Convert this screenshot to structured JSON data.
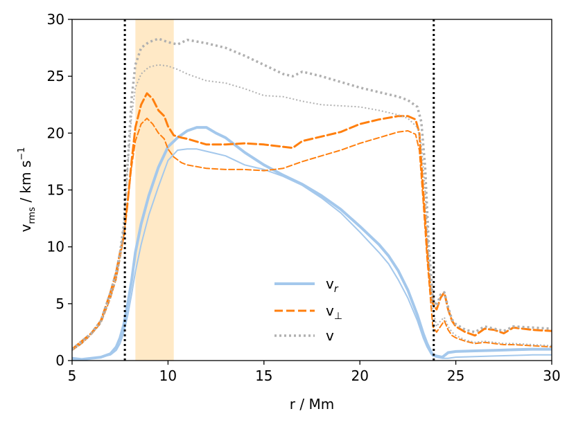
{
  "chart_data": {
    "type": "line",
    "xlabel": "r / Mm",
    "ylabel_main": "v",
    "ylabel_sub": "rms",
    "ylabel_units": " / km s",
    "ylabel_sup": "−1",
    "xlim": [
      5,
      30
    ],
    "ylim": [
      0,
      30
    ],
    "xticks": [
      5,
      10,
      15,
      20,
      25,
      30
    ],
    "yticks": [
      0,
      5,
      10,
      15,
      20,
      25,
      30
    ],
    "vlines": [
      7.75,
      23.85
    ],
    "shaded_span": [
      8.3,
      10.3
    ],
    "colors": {
      "blue": "#a4c8ec",
      "orange": "#ff7f0e",
      "gray": "#b0b0b0",
      "band": "#ffe9c6",
      "vline": "#000000"
    },
    "legend": {
      "position": "center-bottom",
      "entries": [
        {
          "key": "vr",
          "base": "v",
          "sub": "r",
          "style": "solid",
          "color": "blue"
        },
        {
          "key": "vperp",
          "base": "v",
          "sub": "⊥",
          "style": "dashed",
          "color": "orange"
        },
        {
          "key": "v",
          "base": "v",
          "sub": "",
          "style": "dotted",
          "color": "gray"
        }
      ]
    },
    "series": [
      {
        "name": "v_r (thick)",
        "legend_key": "vr",
        "color": "blue",
        "style": "solid",
        "width": 4,
        "x": [
          5,
          5.5,
          6,
          6.5,
          7,
          7.3,
          7.5,
          7.7,
          7.9,
          8.1,
          8.3,
          8.6,
          9,
          9.5,
          10,
          10.5,
          11,
          11.5,
          12,
          12.5,
          13,
          14,
          15,
          16,
          17,
          18,
          19,
          20,
          21,
          21.5,
          22,
          22.5,
          23,
          23.3,
          23.5,
          23.7,
          23.8,
          24,
          24.3,
          24.6,
          25,
          26,
          27,
          28,
          29,
          30
        ],
        "y": [
          0.2,
          0.1,
          0.2,
          0.3,
          0.6,
          1.2,
          2.0,
          3.2,
          5.0,
          7.0,
          9.5,
          12.0,
          14.5,
          17.0,
          18.8,
          19.6,
          20.2,
          20.5,
          20.5,
          20.0,
          19.6,
          18.3,
          17.2,
          16.3,
          15.5,
          14.5,
          13.3,
          11.8,
          10.2,
          9.2,
          7.9,
          6.2,
          4.0,
          2.4,
          1.5,
          0.8,
          0.5,
          0.4,
          0.3,
          0.7,
          0.8,
          0.85,
          0.9,
          0.95,
          1.0,
          1.0
        ]
      },
      {
        "name": "v_r (thin)",
        "legend_key": "vr",
        "color": "blue",
        "style": "solid",
        "width": 2,
        "x": [
          5,
          5.5,
          6,
          6.5,
          7,
          7.3,
          7.5,
          7.7,
          7.9,
          8.1,
          8.3,
          8.6,
          9,
          9.5,
          10,
          10.5,
          11,
          11.5,
          12,
          12.5,
          13,
          14,
          15,
          16,
          17,
          18,
          19,
          20,
          21,
          21.5,
          22,
          22.5,
          23,
          23.3,
          23.5,
          23.7,
          23.8,
          24,
          24.3,
          24.6,
          25,
          26,
          27,
          28,
          29,
          30
        ],
        "y": [
          0.1,
          0.1,
          0.2,
          0.3,
          0.5,
          0.9,
          1.5,
          2.5,
          4.0,
          5.8,
          7.8,
          10.2,
          12.8,
          15.3,
          17.6,
          18.5,
          18.6,
          18.6,
          18.4,
          18.2,
          18.0,
          17.2,
          16.8,
          16.2,
          15.4,
          14.3,
          13.0,
          11.3,
          9.5,
          8.5,
          7.1,
          5.5,
          3.5,
          2.0,
          1.2,
          0.6,
          0.4,
          0.3,
          0.2,
          0.2,
          0.3,
          0.35,
          0.4,
          0.45,
          0.5,
          0.5
        ]
      },
      {
        "name": "v_perp (thick)",
        "legend_key": "vperp",
        "color": "orange",
        "style": "dashed",
        "width": 3,
        "x": [
          5,
          5.5,
          6,
          6.5,
          7,
          7.3,
          7.5,
          7.7,
          7.9,
          8.1,
          8.3,
          8.6,
          8.9,
          9.2,
          9.5,
          9.8,
          10,
          10.3,
          10.7,
          11,
          12,
          13,
          14,
          15,
          16,
          16.5,
          17,
          18,
          19,
          20,
          21,
          22,
          22.5,
          22.9,
          23.1,
          23.3,
          23.5,
          23.7,
          23.8,
          24,
          24.2,
          24.4,
          24.6,
          24.8,
          25,
          25.5,
          26,
          26.5,
          27,
          27.5,
          28,
          29,
          30
        ],
        "y": [
          1.0,
          1.7,
          2.4,
          3.5,
          6.0,
          7.8,
          9.5,
          11.0,
          14.0,
          17.5,
          20.5,
          22.5,
          23.5,
          23.0,
          22.0,
          21.5,
          20.6,
          19.8,
          19.6,
          19.5,
          19.0,
          19.0,
          19.1,
          19.0,
          18.8,
          18.7,
          19.3,
          19.7,
          20.1,
          20.8,
          21.2,
          21.5,
          21.5,
          21.2,
          20.0,
          15.0,
          10.0,
          6.0,
          5.0,
          4.5,
          5.5,
          6.0,
          4.5,
          3.5,
          3.0,
          2.5,
          2.2,
          2.8,
          2.7,
          2.4,
          2.9,
          2.7,
          2.6
        ]
      },
      {
        "name": "v_perp (thin)",
        "legend_key": "vperp",
        "color": "orange",
        "style": "dashed",
        "width": 2,
        "x": [
          5,
          5.5,
          6,
          6.5,
          7,
          7.3,
          7.5,
          7.7,
          7.9,
          8.1,
          8.3,
          8.6,
          8.9,
          9.2,
          9.5,
          9.8,
          10,
          10.3,
          10.7,
          11,
          12,
          13,
          14,
          15,
          16,
          16.5,
          17,
          18,
          19,
          20,
          21,
          22,
          22.5,
          22.9,
          23.1,
          23.3,
          23.5,
          23.7,
          23.8,
          24,
          24.2,
          24.4,
          24.6,
          24.8,
          25,
          25.5,
          26,
          26.5,
          27,
          27.5,
          28,
          29,
          30
        ],
        "y": [
          0.9,
          1.5,
          2.3,
          3.3,
          5.5,
          7.2,
          9.0,
          11.0,
          14.0,
          17.0,
          19.3,
          20.8,
          21.3,
          20.8,
          20.0,
          19.5,
          18.6,
          17.9,
          17.4,
          17.2,
          16.9,
          16.8,
          16.8,
          16.7,
          16.9,
          17.2,
          17.5,
          18.0,
          18.5,
          19.1,
          19.6,
          20.1,
          20.2,
          19.9,
          18.5,
          14.0,
          9.0,
          5.0,
          3.0,
          2.5,
          3.0,
          3.5,
          2.7,
          2.2,
          2.0,
          1.7,
          1.5,
          1.6,
          1.5,
          1.4,
          1.4,
          1.3,
          1.2
        ]
      },
      {
        "name": "v (thick)",
        "legend_key": "v",
        "color": "gray",
        "style": "dotted",
        "width": 3.5,
        "x": [
          5,
          5.5,
          6,
          6.5,
          7,
          7.3,
          7.5,
          7.7,
          7.9,
          8.1,
          8.3,
          8.6,
          9,
          9.5,
          10,
          10.5,
          11,
          12,
          13,
          14,
          15,
          16,
          16.5,
          17,
          18,
          19,
          20,
          21,
          22,
          22.5,
          23,
          23.2,
          23.4,
          23.6,
          23.8,
          24,
          24.2,
          24.4,
          24.6,
          24.8,
          25,
          25.5,
          26,
          26.5,
          27,
          27.5,
          28,
          29,
          30
        ],
        "y": [
          1.0,
          1.7,
          2.4,
          3.5,
          6.0,
          7.8,
          9.5,
          12.0,
          17.5,
          23.0,
          26.0,
          27.5,
          28.0,
          28.3,
          28.0,
          27.8,
          28.2,
          27.9,
          27.5,
          26.8,
          26.0,
          25.2,
          25.0,
          25.4,
          25.0,
          24.5,
          24.0,
          23.6,
          23.2,
          22.9,
          22.3,
          21.0,
          17.0,
          10.0,
          5.5,
          4.8,
          5.8,
          6.0,
          4.7,
          3.6,
          3.2,
          2.7,
          2.5,
          3.0,
          2.8,
          2.6,
          3.0,
          2.9,
          2.8
        ]
      },
      {
        "name": "v (thin)",
        "legend_key": "v",
        "color": "gray",
        "style": "dotted",
        "width": 2,
        "x": [
          5,
          5.5,
          6,
          6.5,
          7,
          7.3,
          7.5,
          7.7,
          7.9,
          8.1,
          8.3,
          8.6,
          9,
          9.5,
          10,
          10.5,
          11,
          12,
          13,
          14,
          15,
          16,
          17,
          18,
          19,
          20,
          21,
          22,
          22.5,
          23,
          23.2,
          23.4,
          23.6,
          23.8,
          24,
          24.2,
          24.4,
          24.6,
          24.8,
          25,
          25.5,
          26,
          26.5,
          27,
          27.5,
          28,
          29,
          30
        ],
        "y": [
          0.9,
          1.5,
          2.3,
          3.3,
          5.5,
          7.2,
          9.0,
          12.0,
          17.0,
          21.5,
          24.0,
          25.2,
          25.8,
          26.0,
          25.9,
          25.6,
          25.2,
          24.6,
          24.4,
          23.9,
          23.3,
          23.2,
          22.8,
          22.5,
          22.4,
          22.3,
          22.0,
          21.6,
          21.3,
          20.5,
          19.0,
          15.0,
          9.0,
          4.5,
          3.0,
          3.5,
          3.8,
          3.0,
          2.5,
          2.2,
          1.8,
          1.6,
          1.7,
          1.6,
          1.5,
          1.5,
          1.4,
          1.3
        ]
      }
    ]
  }
}
